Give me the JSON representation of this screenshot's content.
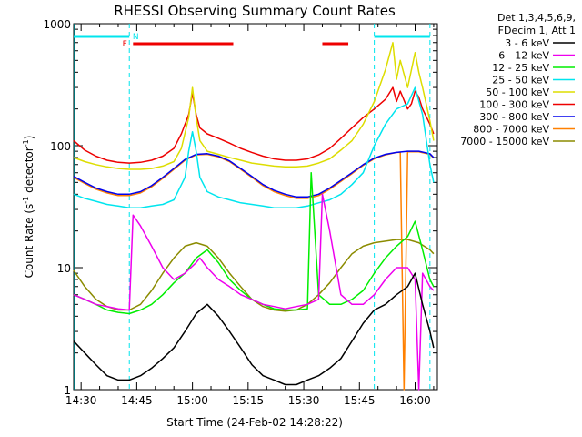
{
  "chart_data": {
    "type": "line",
    "title": "RHESSI Observing Summary Count Rates",
    "xlabel": "Start Time (24-Feb-02 14:28:22)",
    "ylabel_main": "Count Rate (s",
    "ylabel_sup1": "-1",
    "ylabel_mid": " detector",
    "ylabel_sup2": "-1",
    "ylabel_end": ")",
    "y_scale": "log",
    "xlim": [
      0,
      98
    ],
    "ylim": [
      1,
      1000
    ],
    "x_ticks": [
      {
        "value": 2,
        "label": "14:30"
      },
      {
        "value": 17,
        "label": "14:45"
      },
      {
        "value": 32,
        "label": "15:00"
      },
      {
        "value": 47,
        "label": "15:15"
      },
      {
        "value": 62,
        "label": "15:30"
      },
      {
        "value": 77,
        "label": "15:45"
      },
      {
        "value": 92,
        "label": "16:00"
      }
    ],
    "y_ticks": [
      {
        "value": 1,
        "label": "1"
      },
      {
        "value": 10,
        "label": "10"
      },
      {
        "value": 100,
        "label": "100"
      },
      {
        "value": 1000,
        "label": "1000"
      }
    ],
    "legend_header": [
      "Det 1,3,4,5,6,9,",
      "FDecim 1, Att 1"
    ],
    "annotations": {
      "flare_flag": "F",
      "night_flag": "N",
      "night_color": "#00e5ee",
      "flare_color": "#ee0000",
      "night_bars": [
        [
          0,
          15
        ],
        [
          81,
          96
        ]
      ],
      "flare_bars": [
        [
          16,
          43
        ],
        [
          67,
          74
        ]
      ],
      "night_boundaries": [
        15,
        81,
        96
      ]
    },
    "series": [
      {
        "name": "3 - 6 keV",
        "color": "#000000",
        "x": [
          0,
          3,
          6,
          9,
          12,
          15,
          18,
          21,
          24,
          27,
          30,
          33,
          36,
          39,
          42,
          45,
          48,
          51,
          54,
          57,
          60,
          63,
          66,
          69,
          72,
          75,
          78,
          81,
          84,
          87,
          90,
          92,
          94,
          96,
          97
        ],
        "y": [
          2.5,
          2.0,
          1.6,
          1.3,
          1.2,
          1.2,
          1.3,
          1.5,
          1.8,
          2.2,
          3.0,
          4.2,
          5.0,
          4.0,
          3.0,
          2.2,
          1.6,
          1.3,
          1.2,
          1.1,
          1.1,
          1.2,
          1.3,
          1.5,
          1.8,
          2.5,
          3.5,
          4.5,
          5.0,
          6.0,
          7.0,
          9.0,
          5.0,
          3.0,
          2.2
        ]
      },
      {
        "name": "6 - 12 keV",
        "color": "#ee00ee",
        "x": [
          0,
          3,
          6,
          9,
          12,
          15,
          16,
          18,
          21,
          24,
          27,
          30,
          33,
          34,
          36,
          39,
          42,
          45,
          48,
          51,
          54,
          57,
          60,
          63,
          66,
          67,
          69,
          72,
          75,
          78,
          81,
          84,
          87,
          90,
          92,
          93,
          94,
          96,
          97
        ],
        "y": [
          6,
          5.5,
          5,
          4.8,
          4.6,
          4.5,
          27,
          22,
          15,
          10,
          8,
          9,
          11,
          12,
          10,
          8,
          7,
          6,
          5.5,
          5,
          4.8,
          4.6,
          4.8,
          5,
          5.5,
          40,
          20,
          6,
          5,
          5,
          6,
          8,
          10,
          10,
          8,
          1.0,
          9,
          7,
          6.5
        ]
      },
      {
        "name": "12 - 25 keV",
        "color": "#00ee00",
        "x": [
          0,
          3,
          6,
          9,
          12,
          15,
          18,
          21,
          24,
          27,
          30,
          33,
          36,
          39,
          42,
          45,
          48,
          51,
          54,
          57,
          60,
          63,
          64,
          66,
          69,
          72,
          75,
          78,
          81,
          84,
          87,
          90,
          92,
          94,
          96,
          97
        ],
        "y": [
          6,
          5.5,
          5,
          4.5,
          4.3,
          4.2,
          4.5,
          5,
          6,
          7.5,
          9,
          12,
          14,
          11,
          8,
          6.5,
          5.5,
          5,
          4.6,
          4.5,
          4.5,
          4.6,
          60,
          6,
          5,
          5,
          5.5,
          6.5,
          9,
          12,
          15,
          18,
          24,
          14,
          8,
          7
        ]
      },
      {
        "name": "25 - 50 keV",
        "color": "#00e5ee",
        "x": [
          0,
          3,
          6,
          9,
          12,
          15,
          18,
          21,
          24,
          27,
          30,
          31,
          32,
          33,
          34,
          36,
          39,
          42,
          45,
          48,
          51,
          54,
          57,
          60,
          63,
          66,
          69,
          72,
          75,
          78,
          81,
          84,
          87,
          90,
          92,
          94,
          96,
          97
        ],
        "y": [
          40,
          37,
          35,
          33,
          32,
          31,
          31,
          32,
          33,
          36,
          55,
          90,
          130,
          90,
          55,
          42,
          38,
          36,
          34,
          33,
          32,
          31,
          31,
          31,
          32,
          34,
          36,
          40,
          48,
          60,
          100,
          150,
          200,
          220,
          300,
          180,
          70,
          50
        ]
      },
      {
        "name": "50 - 100 keV",
        "color": "#dddd00",
        "x": [
          0,
          3,
          6,
          9,
          12,
          15,
          18,
          21,
          24,
          27,
          29,
          31,
          32,
          33,
          34,
          36,
          39,
          42,
          45,
          48,
          51,
          54,
          57,
          60,
          63,
          66,
          69,
          72,
          75,
          78,
          81,
          84,
          86,
          87,
          88,
          90,
          92,
          93,
          94,
          96,
          97
        ],
        "y": [
          80,
          74,
          70,
          67,
          65,
          64,
          64,
          65,
          68,
          74,
          95,
          170,
          300,
          170,
          110,
          90,
          85,
          80,
          76,
          72,
          70,
          68,
          67,
          67,
          68,
          72,
          78,
          92,
          110,
          150,
          230,
          420,
          700,
          350,
          500,
          300,
          580,
          400,
          300,
          160,
          110
        ]
      },
      {
        "name": "100 - 300 keV",
        "color": "#ee0000",
        "x": [
          0,
          3,
          6,
          9,
          12,
          15,
          18,
          21,
          24,
          27,
          29,
          31,
          32,
          33,
          34,
          36,
          39,
          42,
          45,
          48,
          51,
          54,
          57,
          60,
          63,
          66,
          69,
          72,
          75,
          78,
          81,
          84,
          86,
          87,
          88,
          90,
          91,
          92,
          93,
          94,
          96,
          97
        ],
        "y": [
          110,
          92,
          82,
          76,
          73,
          72,
          73,
          76,
          82,
          95,
          125,
          180,
          270,
          180,
          140,
          125,
          115,
          105,
          95,
          88,
          82,
          78,
          76,
          76,
          78,
          84,
          95,
          115,
          140,
          170,
          200,
          240,
          300,
          230,
          280,
          200,
          220,
          280,
          250,
          200,
          150,
          125
        ]
      },
      {
        "name": "300 - 800 keV",
        "color": "#0000ee",
        "x": [
          0,
          3,
          6,
          9,
          12,
          15,
          18,
          21,
          24,
          27,
          30,
          33,
          36,
          39,
          42,
          45,
          48,
          51,
          54,
          57,
          60,
          63,
          66,
          69,
          72,
          75,
          78,
          81,
          84,
          87,
          90,
          93,
          96,
          97
        ],
        "y": [
          56,
          50,
          45,
          42,
          40,
          40,
          42,
          47,
          55,
          65,
          77,
          85,
          86,
          82,
          75,
          65,
          56,
          48,
          43,
          40,
          38,
          38,
          40,
          45,
          52,
          60,
          70,
          79,
          85,
          88,
          90,
          90,
          86,
          80
        ]
      },
      {
        "name": "800 - 7000 keV",
        "color": "#ff8000",
        "x": [
          0,
          3,
          6,
          9,
          12,
          15,
          18,
          21,
          24,
          27,
          30,
          33,
          36,
          39,
          42,
          45,
          48,
          51,
          54,
          57,
          60,
          63,
          66,
          69,
          72,
          75,
          78,
          81,
          84,
          87,
          88,
          89,
          90,
          93,
          96,
          97
        ],
        "y": [
          55,
          49,
          44,
          41,
          39,
          39,
          41,
          46,
          54,
          64,
          76,
          84,
          85,
          81,
          74,
          64,
          55,
          47,
          42,
          39,
          37,
          37,
          39,
          44,
          51,
          59,
          69,
          78,
          84,
          88,
          88,
          0.9,
          89,
          89,
          85,
          79
        ]
      },
      {
        "name": "7000 - 15000 keV",
        "color": "#8b8b00",
        "x": [
          0,
          3,
          6,
          9,
          12,
          15,
          18,
          21,
          24,
          27,
          30,
          33,
          36,
          39,
          42,
          45,
          48,
          51,
          54,
          57,
          60,
          63,
          66,
          69,
          72,
          75,
          78,
          81,
          84,
          87,
          90,
          93,
          96,
          97
        ],
        "y": [
          9.5,
          7,
          5.5,
          4.8,
          4.5,
          4.5,
          5,
          6.5,
          9,
          12,
          15,
          16,
          15,
          12,
          9,
          7,
          5.5,
          4.8,
          4.5,
          4.4,
          4.5,
          5,
          6,
          7.5,
          10,
          13,
          15,
          16,
          16.5,
          17,
          17,
          16,
          14,
          13
        ]
      }
    ]
  }
}
